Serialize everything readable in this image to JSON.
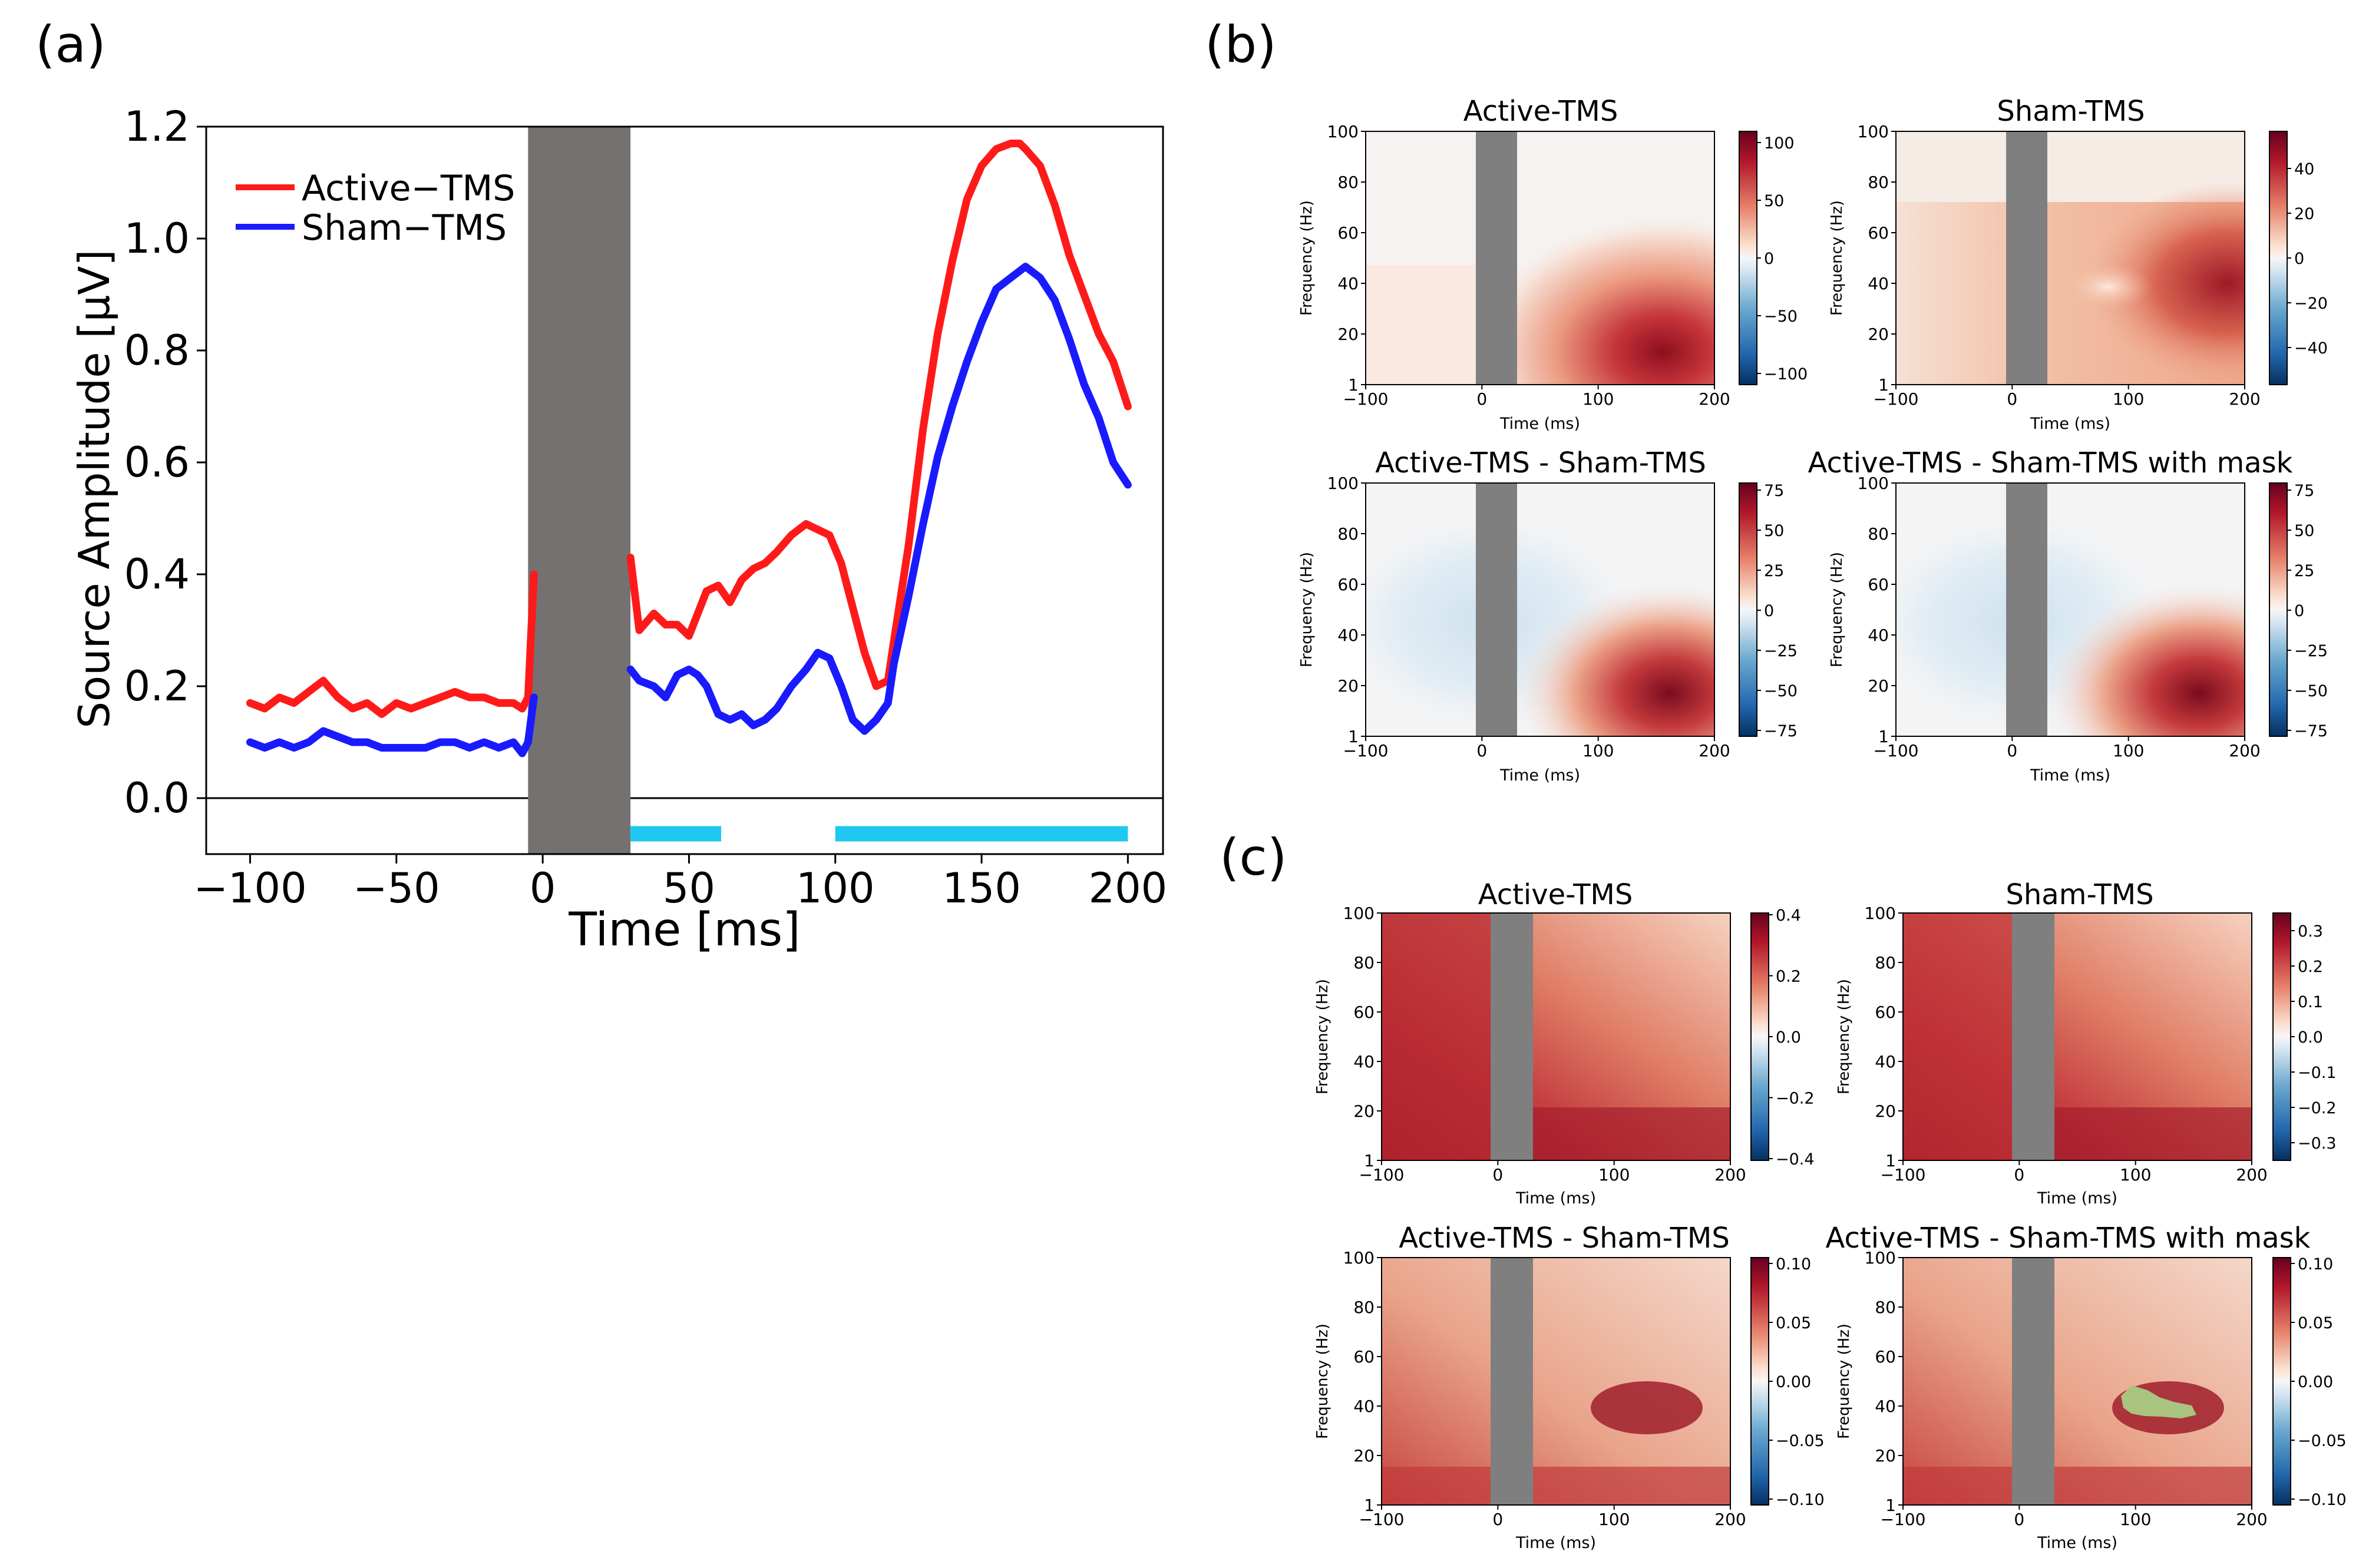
{
  "panel_labels": {
    "a": "(a)",
    "b": "(b)",
    "c": "(c)"
  },
  "colors": {
    "active": "#ff1a1a",
    "sham": "#1a1aff",
    "stim_block": "#757170",
    "sig_bar": "#1ec8f0",
    "mask": "#a9c47f",
    "tfr_block": "#7f7f7f"
  },
  "chart_data": [
    {
      "type": "line",
      "title": "",
      "xlabel": "Time [ms]",
      "ylabel": "Source Amplitude [μV]",
      "xlim": [
        -115,
        212
      ],
      "ylim": [
        -0.1,
        1.2
      ],
      "xticks": [
        -100,
        -50,
        0,
        50,
        100,
        150,
        200
      ],
      "xtick_labels": [
        "−100",
        "−50",
        "0",
        "50",
        "100",
        "150",
        "200"
      ],
      "yticks": [
        0.0,
        0.2,
        0.4,
        0.6,
        0.8,
        1.0,
        1.2
      ],
      "ytick_labels": [
        "0.0",
        "0.2",
        "0.4",
        "0.6",
        "0.8",
        "1.0",
        "1.2"
      ],
      "legend": "top-left",
      "stim_artifact_window": [
        -5,
        30
      ],
      "significant_windows": [
        [
          30,
          61
        ],
        [
          100,
          200
        ]
      ],
      "series": [
        {
          "name": "Active−TMS",
          "x": [
            -100,
            -95,
            -90,
            -85,
            -80,
            -75,
            -70,
            -65,
            -60,
            -55,
            -50,
            -45,
            -40,
            -35,
            -30,
            -25,
            -20,
            -15,
            -10,
            -7,
            -5,
            -3,
            30,
            33,
            38,
            42,
            46,
            50,
            53,
            56,
            60,
            64,
            68,
            72,
            76,
            80,
            85,
            90,
            94,
            98,
            102,
            106,
            110,
            114,
            118,
            120,
            125,
            130,
            135,
            140,
            145,
            150,
            155,
            160,
            163,
            165,
            170,
            175,
            180,
            185,
            190,
            195,
            200
          ],
          "y": [
            0.17,
            0.16,
            0.18,
            0.17,
            0.19,
            0.21,
            0.18,
            0.16,
            0.17,
            0.15,
            0.17,
            0.16,
            0.17,
            0.18,
            0.19,
            0.18,
            0.18,
            0.17,
            0.17,
            0.16,
            0.18,
            0.4,
            0.43,
            0.3,
            0.33,
            0.31,
            0.31,
            0.29,
            0.33,
            0.37,
            0.38,
            0.35,
            0.39,
            0.41,
            0.42,
            0.44,
            0.47,
            0.49,
            0.48,
            0.47,
            0.42,
            0.34,
            0.26,
            0.2,
            0.21,
            0.28,
            0.45,
            0.66,
            0.83,
            0.96,
            1.07,
            1.13,
            1.16,
            1.17,
            1.17,
            1.16,
            1.13,
            1.06,
            0.97,
            0.9,
            0.83,
            0.78,
            0.7
          ]
        },
        {
          "name": "Sham−TMS",
          "x": [
            -100,
            -95,
            -90,
            -85,
            -80,
            -75,
            -70,
            -65,
            -60,
            -55,
            -50,
            -45,
            -40,
            -35,
            -30,
            -25,
            -20,
            -15,
            -10,
            -7,
            -5,
            -3,
            30,
            33,
            38,
            42,
            46,
            50,
            53,
            56,
            60,
            64,
            68,
            72,
            76,
            80,
            85,
            90,
            94,
            98,
            102,
            106,
            110,
            114,
            118,
            120,
            125,
            130,
            135,
            140,
            145,
            150,
            155,
            160,
            165,
            170,
            175,
            180,
            185,
            190,
            195,
            200
          ],
          "y": [
            0.1,
            0.09,
            0.1,
            0.09,
            0.1,
            0.12,
            0.11,
            0.1,
            0.1,
            0.09,
            0.09,
            0.09,
            0.09,
            0.1,
            0.1,
            0.09,
            0.1,
            0.09,
            0.1,
            0.08,
            0.1,
            0.18,
            0.23,
            0.21,
            0.2,
            0.18,
            0.22,
            0.23,
            0.22,
            0.2,
            0.15,
            0.14,
            0.15,
            0.13,
            0.14,
            0.16,
            0.2,
            0.23,
            0.26,
            0.25,
            0.2,
            0.14,
            0.12,
            0.14,
            0.17,
            0.24,
            0.36,
            0.49,
            0.61,
            0.7,
            0.78,
            0.85,
            0.91,
            0.93,
            0.95,
            0.93,
            0.89,
            0.82,
            0.74,
            0.68,
            0.6,
            0.56
          ]
        }
      ]
    },
    {
      "type": "heatmap",
      "group": "b",
      "xlabel": "Time (ms)",
      "ylabel": "Frequency (Hz)",
      "xticks": [
        "−100",
        "0",
        "100",
        "200"
      ],
      "yticks": [
        "1",
        "20",
        "40",
        "60",
        "80",
        "100"
      ],
      "panels": [
        {
          "title": "Active-TMS",
          "colorbar_ticks": [
            "100",
            "50",
            "0",
            "−50",
            "−100"
          ]
        },
        {
          "title": "Sham-TMS",
          "colorbar_ticks": [
            "40",
            "20",
            "0",
            "−20",
            "−40"
          ]
        },
        {
          "title": "Active-TMS - Sham-TMS",
          "colorbar_ticks": [
            "75",
            "50",
            "25",
            "0",
            "−25",
            "−50",
            "−75"
          ]
        },
        {
          "title": "Active-TMS - Sham-TMS  with mask",
          "colorbar_ticks": [
            "75",
            "50",
            "25",
            "0",
            "−25",
            "−50",
            "−75"
          ]
        }
      ]
    },
    {
      "type": "heatmap",
      "group": "c",
      "xlabel": "Time (ms)",
      "ylabel": "Frequency (Hz)",
      "xticks": [
        "−100",
        "0",
        "100",
        "200"
      ],
      "yticks": [
        "1",
        "20",
        "40",
        "60",
        "80",
        "100"
      ],
      "panels": [
        {
          "title": "Active-TMS",
          "colorbar_ticks": [
            "0.4",
            "0.2",
            "0.0",
            "−0.2",
            "−0.4"
          ]
        },
        {
          "title": "Sham-TMS",
          "colorbar_ticks": [
            "0.3",
            "0.2",
            "0.1",
            "0.0",
            "−0.1",
            "−0.2",
            "−0.3"
          ]
        },
        {
          "title": "Active-TMS - Sham-TMS",
          "colorbar_ticks": [
            "0.10",
            "0.05",
            "0.00",
            "−0.05",
            "−0.10"
          ]
        },
        {
          "title": "Active-TMS - Sham-TMS  with mask",
          "colorbar_ticks": [
            "0.10",
            "0.05",
            "0.00",
            "−0.05",
            "−0.10"
          ]
        }
      ]
    }
  ]
}
